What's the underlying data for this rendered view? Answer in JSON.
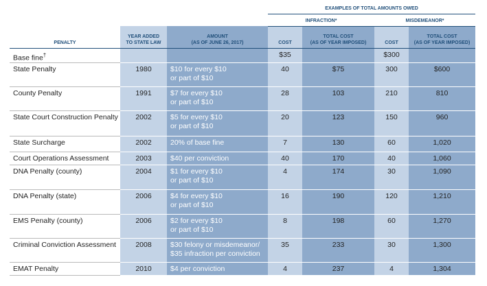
{
  "header": {
    "group": "EXAMPLES OF TOTAL AMOUNTS OWED",
    "infraction": "INFRACTION*",
    "misdemeanor": "MISDEMEANOR*",
    "columns": {
      "penalty": "PENALTY",
      "year": [
        "YEAR ADDED",
        "TO STATE LAW"
      ],
      "amount": [
        "AMOUNT",
        "(AS OF JUNE 26, 2017)"
      ],
      "infraction_cost": "COST",
      "infraction_total": [
        "TOTAL COST",
        "(AS OF YEAR IMPOSED)"
      ],
      "misdemeanor_cost": "COST",
      "misdemeanor_total": [
        "TOTAL COST",
        "(AS OF YEAR IMPOSED)"
      ]
    }
  },
  "table": {
    "rows": [
      {
        "penalty": "Base fine",
        "penalty_mark": "†",
        "infraction_cost": "$35",
        "misdemeanor_cost": "$300"
      },
      {
        "penalty": "State Penalty",
        "year": 1980,
        "amount": [
          "$10 for every $10",
          "or part of $10"
        ],
        "infraction_cost": 40,
        "infraction_total": "$75",
        "misdemeanor_cost": 300,
        "misdemeanor_total": "$600"
      },
      {
        "penalty": "County Penalty",
        "year": 1991,
        "amount": [
          "$7 for every $10",
          "or part of $10"
        ],
        "infraction_cost": 28,
        "infraction_total": 103,
        "misdemeanor_cost": 210,
        "misdemeanor_total": 810
      },
      {
        "penalty": "State Court Construction Penalty",
        "year": 2002,
        "amount": [
          "$5 for every $10",
          "or part of $10"
        ],
        "infraction_cost": 20,
        "infraction_total": 123,
        "misdemeanor_cost": 150,
        "misdemeanor_total": 960
      },
      {
        "penalty": "State Surcharge",
        "year": 2002,
        "amount": [
          "20% of base fine"
        ],
        "infraction_cost": 7,
        "infraction_total": 130,
        "misdemeanor_cost": 60,
        "misdemeanor_total": "1,020"
      },
      {
        "penalty": "Court Operations Assessment",
        "year": 2003,
        "amount": [
          "$40 per conviction"
        ],
        "infraction_cost": 40,
        "infraction_total": 170,
        "misdemeanor_cost": 40,
        "misdemeanor_total": "1,060"
      },
      {
        "penalty": "DNA Penalty (county)",
        "year": 2004,
        "amount": [
          "$1 for every $10",
          "or part of $10"
        ],
        "infraction_cost": 4,
        "infraction_total": 174,
        "misdemeanor_cost": 30,
        "misdemeanor_total": "1,090"
      },
      {
        "penalty": "DNA Penalty (state)",
        "year": 2006,
        "amount": [
          "$4 for every $10",
          "or part of $10"
        ],
        "infraction_cost": 16,
        "infraction_total": 190,
        "misdemeanor_cost": 120,
        "misdemeanor_total": "1,210"
      },
      {
        "penalty": "EMS Penalty (county)",
        "year": 2006,
        "amount": [
          "$2 for every $10",
          "or part of $10"
        ],
        "infraction_cost": 8,
        "infraction_total": 198,
        "misdemeanor_cost": 60,
        "misdemeanor_total": "1,270"
      },
      {
        "penalty": "Criminal Conviction Assessment",
        "year": 2008,
        "amount": [
          "$30 felony or misdemeanor/",
          "$35 infraction per conviction"
        ],
        "infraction_cost": 35,
        "infraction_total": 233,
        "misdemeanor_cost": 30,
        "misdemeanor_total": "1,300"
      },
      {
        "penalty": "EMAT Penalty",
        "year": 2010,
        "amount": [
          "$4 per conviction"
        ],
        "infraction_cost": 4,
        "infraction_total": 237,
        "misdemeanor_cost": 4,
        "misdemeanor_total": "1,304"
      }
    ]
  }
}
